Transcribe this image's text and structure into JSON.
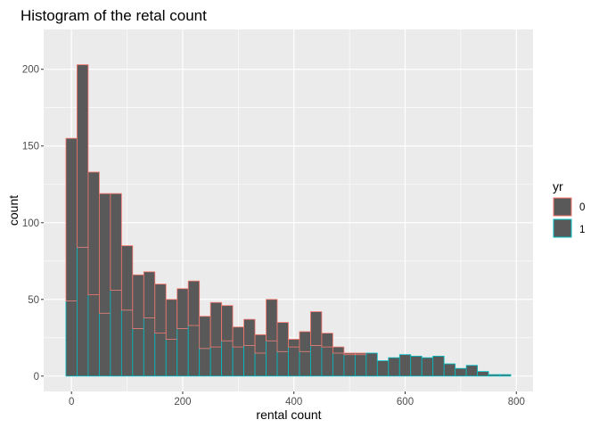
{
  "chart_data": {
    "type": "bar",
    "title": "Histogram of the retal count",
    "xlabel": "rental count",
    "ylabel": "count",
    "xlim": [
      -50,
      830
    ],
    "ylim": [
      -10,
      226
    ],
    "x_ticks": [
      0,
      200,
      400,
      600,
      800
    ],
    "y_ticks": [
      0,
      50,
      100,
      150,
      200
    ],
    "bin_width": 20,
    "stacked": true,
    "grid": true,
    "legend": {
      "title": "yr",
      "position": "right",
      "entries": [
        {
          "label": "0",
          "color": "#F8766D"
        },
        {
          "label": "1",
          "color": "#00BFC4"
        }
      ]
    },
    "colors": {
      "bar_fill": "#595959",
      "panel": "#EBEBEB",
      "grid": "#FFFFFF"
    },
    "series": [
      {
        "name": "0",
        "color": "#F8766D",
        "bin_starts": [
          -10,
          10,
          30,
          50,
          70,
          90,
          110,
          130,
          150,
          170,
          190,
          210,
          230,
          250,
          270,
          290,
          310,
          330,
          350,
          370,
          390,
          410,
          430,
          450,
          470,
          490,
          510,
          530,
          550,
          570,
          590,
          610,
          630,
          650,
          670,
          690,
          710,
          730,
          750,
          770
        ],
        "values": [
          106,
          119,
          80,
          78,
          63,
          42,
          35,
          30,
          32,
          26,
          26,
          29,
          21,
          29,
          23,
          13,
          17,
          12,
          27,
          19,
          5,
          13,
          22,
          9,
          4,
          1,
          1,
          0,
          0,
          0,
          0,
          0,
          0,
          0,
          0,
          0,
          0,
          0,
          0,
          0
        ]
      },
      {
        "name": "1",
        "color": "#00BFC4",
        "bin_starts": [
          -10,
          10,
          30,
          50,
          70,
          90,
          110,
          130,
          150,
          170,
          190,
          210,
          230,
          250,
          270,
          290,
          310,
          330,
          350,
          370,
          390,
          410,
          430,
          450,
          470,
          490,
          510,
          530,
          550,
          570,
          590,
          610,
          630,
          650,
          670,
          690,
          710,
          730,
          750,
          770
        ],
        "values": [
          49,
          84,
          53,
          41,
          56,
          43,
          31,
          38,
          28,
          24,
          31,
          33,
          18,
          19,
          23,
          19,
          20,
          15,
          23,
          16,
          19,
          16,
          20,
          19,
          15,
          14,
          14,
          15,
          10,
          12,
          14,
          13,
          12,
          13,
          8,
          5,
          7,
          3,
          1,
          1
        ]
      }
    ]
  }
}
